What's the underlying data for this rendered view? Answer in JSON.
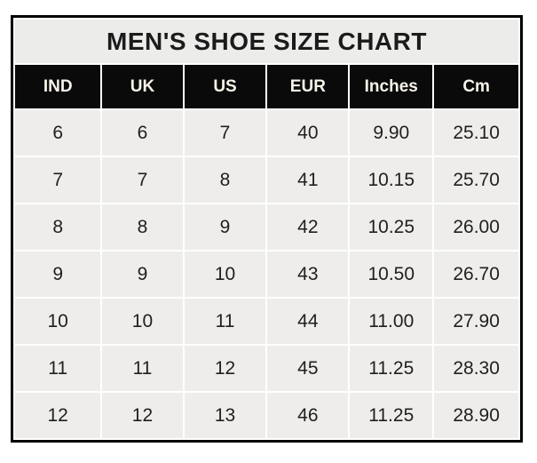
{
  "chart_data": {
    "type": "table",
    "title": "MEN'S SHOE SIZE CHART",
    "columns": [
      "IND",
      "UK",
      "US",
      "EUR",
      "Inches",
      "Cm"
    ],
    "rows": [
      [
        "6",
        "6",
        "7",
        "40",
        "9.90",
        "25.10"
      ],
      [
        "7",
        "7",
        "8",
        "41",
        "10.15",
        "25.70"
      ],
      [
        "8",
        "8",
        "9",
        "42",
        "10.25",
        "26.00"
      ],
      [
        "9",
        "9",
        "10",
        "43",
        "10.50",
        "26.70"
      ],
      [
        "10",
        "10",
        "11",
        "44",
        "11.00",
        "27.90"
      ],
      [
        "11",
        "11",
        "12",
        "45",
        "11.25",
        "28.30"
      ],
      [
        "12",
        "12",
        "13",
        "46",
        "11.25",
        "28.90"
      ]
    ],
    "layout": {
      "legend": "none",
      "grid": "white separators between shaded cells",
      "outer_border": "thick black"
    }
  },
  "colors": {
    "outer_border": "#000000",
    "title_bg": "#ececeb",
    "header_bg": "#0a0a0a",
    "header_text": "#f7f3e8",
    "cell_bg": "#eeedec",
    "cell_text": "#1f1f1f",
    "gridline": "#ffffff",
    "page_bg": "#ffffff"
  }
}
